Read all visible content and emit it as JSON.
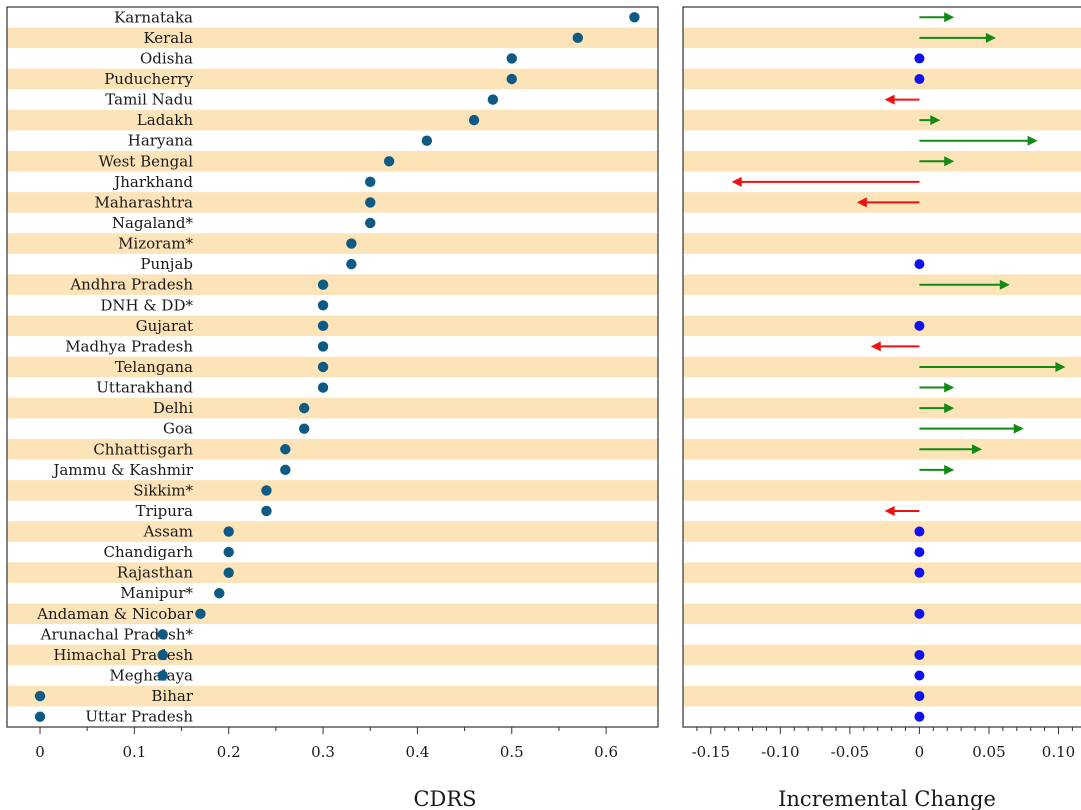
{
  "chart_data": [
    {
      "type": "scatter",
      "xlabel": "CDRS",
      "xticks": [
        "0",
        "0.1",
        "0.2",
        "0.3",
        "0.4",
        "0.5",
        "0.6"
      ],
      "xlim": [
        -0.035,
        0.655
      ],
      "marker_color": "#0d5a85",
      "stripe_color": "#fde3b8",
      "categories": [
        "Karnataka",
        "Kerala",
        "Odisha",
        "Puducherry",
        "Tamil Nadu",
        "Ladakh",
        "Haryana",
        "West Bengal",
        "Jharkhand",
        "Maharashtra",
        "Nagaland*",
        "Mizoram*",
        "Punjab",
        "Andhra Pradesh",
        "DNH & DD*",
        "Gujarat",
        "Madhya Pradesh",
        "Telangana",
        "Uttarakhand",
        "Delhi",
        "Goa",
        "Chhattisgarh",
        "Jammu & Kashmir",
        "Sikkim*",
        "Tripura",
        "Assam",
        "Chandigarh",
        "Rajasthan",
        "Manipur*",
        "Andaman & Nicobar",
        "Arunachal Pradesh*",
        "Himachal Pradesh",
        "Meghalaya",
        "Bihar",
        "Uttar Pradesh"
      ],
      "values": [
        0.63,
        0.57,
        0.5,
        0.5,
        0.48,
        0.46,
        0.41,
        0.37,
        0.35,
        0.35,
        0.35,
        0.33,
        0.33,
        0.3,
        0.3,
        0.3,
        0.3,
        0.3,
        0.3,
        0.28,
        0.28,
        0.26,
        0.26,
        0.24,
        0.24,
        0.2,
        0.2,
        0.2,
        0.19,
        0.17,
        0.13,
        0.13,
        0.13,
        0.0,
        0.0
      ]
    },
    {
      "type": "arrow",
      "xlabel": "Incremental Change",
      "xticks": [
        "-0.15",
        "-0.10",
        "-0.05",
        "0",
        "0.05",
        "0.10"
      ],
      "xlim": [
        -0.17,
        0.132
      ],
      "colors": {
        "increase": "#138a13",
        "decrease": "#ee1111",
        "none": "#1111ee"
      },
      "categories": [
        "Karnataka",
        "Kerala",
        "Odisha",
        "Puducherry",
        "Tamil Nadu",
        "Ladakh",
        "Haryana",
        "West Bengal",
        "Jharkhand",
        "Maharashtra",
        "Nagaland*",
        "Mizoram*",
        "Punjab",
        "Andhra Pradesh",
        "DNH & DD*",
        "Gujarat",
        "Madhya Pradesh",
        "Telangana",
        "Uttarakhand",
        "Delhi",
        "Goa",
        "Chhattisgarh",
        "Jammu & Kashmir",
        "Sikkim*",
        "Tripura",
        "Assam",
        "Chandigarh",
        "Rajasthan",
        "Manipur*",
        "Andaman & Nicobar",
        "Arunachal Pradesh*",
        "Himachal Pradesh",
        "Meghalaya",
        "Bihar",
        "Uttar Pradesh"
      ],
      "values": [
        0.025,
        0.055,
        0,
        0,
        -0.025,
        0.015,
        0.085,
        0.025,
        -0.135,
        -0.045,
        null,
        null,
        0,
        0.065,
        null,
        0,
        -0.035,
        0.105,
        0.025,
        0.025,
        0.075,
        0.045,
        0.025,
        null,
        -0.025,
        0,
        0,
        0,
        null,
        0,
        null,
        0,
        0,
        0,
        0
      ]
    }
  ]
}
